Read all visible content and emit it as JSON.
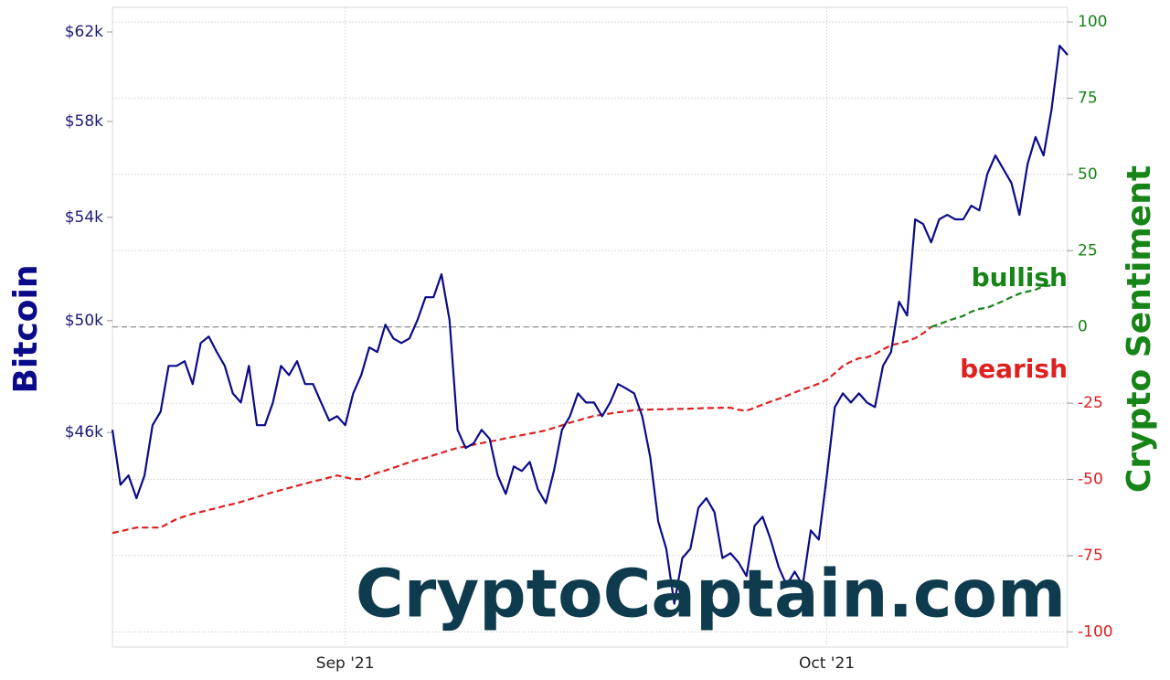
{
  "chart_data": {
    "type": "line",
    "categories": [
      null,
      null,
      null,
      null,
      null,
      null,
      null,
      null,
      null,
      null,
      null,
      null,
      null,
      null,
      null,
      null,
      null,
      null,
      null,
      null,
      null,
      null,
      null,
      null,
      null,
      null,
      null,
      null,
      null,
      "Sep '21",
      null,
      null,
      null,
      null,
      null,
      null,
      null,
      null,
      null,
      null,
      null,
      null,
      null,
      null,
      null,
      null,
      null,
      null,
      null,
      null,
      null,
      null,
      null,
      null,
      null,
      null,
      null,
      null,
      null,
      null,
      null,
      null,
      null,
      null,
      null,
      null,
      null,
      null,
      null,
      null,
      null,
      null,
      null,
      null,
      null,
      null,
      null,
      null,
      null,
      null,
      null,
      null,
      null,
      null,
      null,
      null,
      null,
      null,
      null,
      "Oct '21",
      null,
      null,
      null,
      null,
      null,
      null,
      null,
      null,
      null,
      null,
      null,
      null,
      null,
      null,
      null,
      null,
      null,
      null,
      null,
      null,
      null,
      null,
      null,
      null,
      null,
      null,
      null,
      null,
      null,
      null
    ],
    "series": [
      {
        "name": "Bitcoin",
        "color": "#0b0b8a",
        "values": [
          46090,
          44240,
          44550,
          43800,
          44550,
          46250,
          46720,
          48340,
          48340,
          48510,
          47690,
          49170,
          49410,
          48840,
          48340,
          47360,
          47040,
          48340,
          46250,
          46250,
          47040,
          48340,
          48010,
          48510,
          47690,
          47690,
          47040,
          46410,
          46560,
          46250,
          47360,
          48010,
          49010,
          48840,
          49850,
          49340,
          49170,
          49340,
          50020,
          50880,
          50880,
          51760,
          50020,
          46090,
          45470,
          45630,
          46090,
          45780,
          44550,
          43940,
          44850,
          44700,
          45000,
          44090,
          43640,
          44700,
          46090,
          46560,
          47360,
          47040,
          47040,
          46560,
          47040,
          47690,
          47530,
          47360,
          46560,
          45160,
          43050,
          42180,
          40490,
          41890,
          42180,
          43490,
          43800,
          43350,
          41890,
          42040,
          41750,
          41330,
          42910,
          43200,
          42470,
          41610,
          41050,
          41470,
          41050,
          42760,
          42470,
          44550,
          46880,
          47360,
          47040,
          47360,
          47040,
          46880,
          48340,
          48840,
          50710,
          50190,
          53920,
          53730,
          53000,
          53920,
          54100,
          53920,
          53920,
          54470,
          54280,
          55780,
          56550,
          55980,
          55400,
          54100,
          56170,
          57330,
          56550,
          58510,
          61370,
          60950
        ]
      },
      {
        "name": "Crypto Sentiment",
        "axis": "y2",
        "color": "#dd2020",
        "positive_color": "#168416",
        "values": [
          -67.6,
          -67.0,
          -66.4,
          -65.8,
          -65.8,
          -65.8,
          -65.8,
          -64.4,
          -63.0,
          -62.1,
          -61.3,
          -60.7,
          -60.0,
          -59.4,
          -58.7,
          -58.1,
          -57.4,
          -56.6,
          -55.8,
          -55.0,
          -54.2,
          -53.5,
          -52.8,
          -52.1,
          -51.4,
          -50.7,
          -50.1,
          -49.4,
          -48.7,
          -49.3,
          -49.9,
          -49.9,
          -48.8,
          -47.8,
          -47.1,
          -46.2,
          -45.3,
          -44.4,
          -43.5,
          -43.0,
          -42.1,
          -41.3,
          -40.4,
          -39.7,
          -39.2,
          -38.6,
          -38.1,
          -37.6,
          -37.1,
          -36.5,
          -36.0,
          -35.5,
          -35.0,
          -34.5,
          -33.9,
          -33.1,
          -32.3,
          -31.4,
          -30.7,
          -29.9,
          -29.2,
          -28.8,
          -28.4,
          -28.0,
          -27.7,
          -27.3,
          -27.1,
          -27.1,
          -27.0,
          -27.0,
          -26.9,
          -26.9,
          -26.8,
          -26.7,
          -26.6,
          -26.6,
          -26.5,
          -26.5,
          -27.2,
          -27.5,
          -26.5,
          -25.5,
          -24.5,
          -23.6,
          -22.6,
          -21.5,
          -20.5,
          -19.6,
          -18.6,
          -17.3,
          -15.2,
          -12.8,
          -11.4,
          -10.3,
          -10.0,
          -8.9,
          -7.4,
          -6.0,
          -5.4,
          -4.7,
          -3.7,
          -2.1,
          0.0,
          0.9,
          1.9,
          2.8,
          3.6,
          5.0,
          5.9,
          6.3,
          7.4,
          8.5,
          9.8,
          10.9,
          11.6,
          12.2,
          13.4,
          13.6,
          null,
          null
        ]
      }
    ],
    "ylim": [
      39200,
      63150
    ],
    "y_log_scale": true,
    "yticks": [
      {
        "value": 46000,
        "label": "$46k"
      },
      {
        "value": 50000,
        "label": "$50k"
      },
      {
        "value": 54000,
        "label": "$54k"
      },
      {
        "value": 58000,
        "label": "$58k"
      },
      {
        "value": 62000,
        "label": "$62k"
      }
    ],
    "y_tick_color": "#1a1a78",
    "y2lim": [
      -105,
      104.8
    ],
    "y2ticks": [
      -100,
      -75,
      -50,
      -25,
      0,
      25,
      50,
      75,
      100
    ],
    "grid": true,
    "zero_line": true,
    "annotations": [
      {
        "text": "bullish",
        "color": "#168416"
      },
      {
        "text": "bearish",
        "color": "#dd2020"
      }
    ],
    "watermark": "CryptoCaptain.com",
    "watermark_color": "#0e3b4e"
  }
}
